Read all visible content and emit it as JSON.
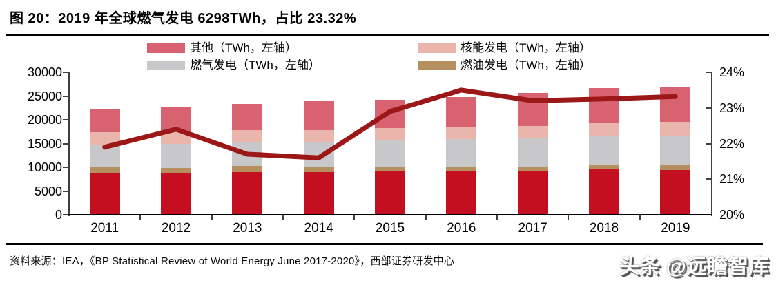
{
  "page": {
    "title": "图 20：2019 年全球燃气发电 6298TWh，占比 23.32%",
    "source": "资料来源：IEA，《BP Statistical Review of World Energy June 2017-2020》，西部证券研发中心",
    "watermark": "头条 @远瞻智库"
  },
  "chart_data": {
    "type": "combo_stacked_bar_line",
    "title": "2019 年全球燃气发电 6298TWh，占比 23.32%",
    "categories": [
      "2011",
      "2012",
      "2013",
      "2014",
      "2015",
      "2016",
      "2017",
      "2018",
      "2019"
    ],
    "left_axis": {
      "unit": "TWh",
      "range": [
        0,
        30000
      ],
      "ticks": [
        0,
        5000,
        10000,
        15000,
        20000,
        25000,
        30000
      ]
    },
    "right_axis": {
      "unit": "%",
      "range": [
        20,
        24
      ],
      "ticks": [
        20,
        21,
        22,
        23,
        24
      ]
    },
    "grid": false,
    "legend_position": "top",
    "legend_rows": [
      [
        {
          "label": "其他（TWh，左轴）",
          "color": "#d8626f"
        },
        {
          "label": "核能发电（TWh，左轴）",
          "color": "#eab5ab"
        }
      ],
      [
        {
          "label": "燃气发电（TWh，左轴）",
          "color": "#c8c8ca"
        },
        {
          "label": "燃油发电（TWh，左轴）",
          "color": "#b5905e"
        }
      ]
    ],
    "bar_series": [
      {
        "label": "",
        "legend_visible": false,
        "color": "#c40f20",
        "values": [
          8650,
          8800,
          9000,
          9000,
          9150,
          9070,
          9300,
          9560,
          9410
        ]
      },
      {
        "label": "燃油发电（TWh，左轴）",
        "legend_visible": true,
        "color": "#b5905e",
        "values": [
          1280,
          1100,
          1250,
          1150,
          1000,
          970,
          880,
          880,
          1030
        ]
      },
      {
        "label": "燃气发电（TWh，左轴）",
        "legend_visible": true,
        "color": "#c8c8ca",
        "values": [
          4820,
          5090,
          5100,
          5150,
          5550,
          5850,
          5920,
          6180,
          6298
        ]
      },
      {
        "label": "核能发电（TWh，左轴）",
        "legend_visible": true,
        "color": "#eab5ab",
        "values": [
          2600,
          2550,
          2450,
          2550,
          2570,
          2610,
          2640,
          2700,
          2800
        ]
      },
      {
        "label": "其他（TWh，左轴）",
        "legend_visible": true,
        "color": "#d8626f",
        "values": [
          4810,
          5150,
          5480,
          6020,
          5990,
          6300,
          6880,
          7380,
          7460
        ]
      }
    ],
    "line_series": {
      "label": "",
      "legend_visible": false,
      "axis": "right",
      "color": "#9c1818",
      "values": [
        21.9,
        22.4,
        21.7,
        21.6,
        22.9,
        23.5,
        23.2,
        23.25,
        23.32
      ]
    }
  }
}
